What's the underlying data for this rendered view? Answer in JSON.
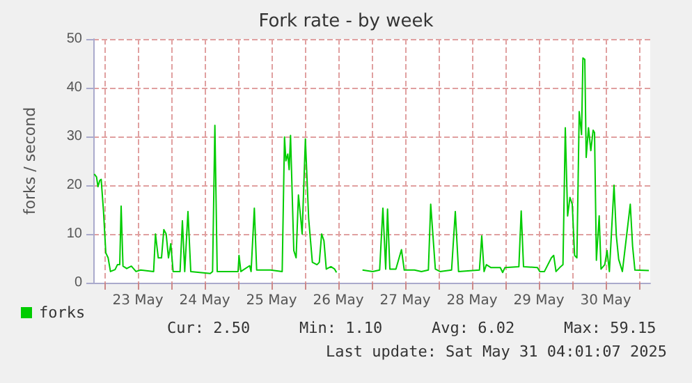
{
  "chart_data": {
    "type": "line",
    "title": "Fork rate - by week",
    "ylabel": "forks / second",
    "xlim": [
      "2025-05-22T20:00",
      "2025-05-31T04:00"
    ],
    "xticks": [
      {
        "value": "2025-05-23T00:00",
        "label": null
      },
      {
        "value": "2025-05-23T12:00",
        "label": "23 May"
      },
      {
        "value": "2025-05-24T00:00",
        "label": null
      },
      {
        "value": "2025-05-24T12:00",
        "label": "24 May"
      },
      {
        "value": "2025-05-25T00:00",
        "label": null
      },
      {
        "value": "2025-05-25T12:00",
        "label": "25 May"
      },
      {
        "value": "2025-05-26T00:00",
        "label": null
      },
      {
        "value": "2025-05-26T12:00",
        "label": "26 May"
      },
      {
        "value": "2025-05-27T00:00",
        "label": null
      },
      {
        "value": "2025-05-27T12:00",
        "label": "27 May"
      },
      {
        "value": "2025-05-28T00:00",
        "label": null
      },
      {
        "value": "2025-05-28T12:00",
        "label": "28 May"
      },
      {
        "value": "2025-05-29T00:00",
        "label": null
      },
      {
        "value": "2025-05-29T12:00",
        "label": "29 May"
      },
      {
        "value": "2025-05-30T00:00",
        "label": null
      },
      {
        "value": "2025-05-30T12:00",
        "label": "30 May"
      },
      {
        "value": "2025-05-31T00:00",
        "label": null
      }
    ],
    "ylim": [
      0,
      50
    ],
    "yticks": [
      0,
      10,
      20,
      30,
      40,
      50
    ],
    "grid": true,
    "legend": "bottom left",
    "marker": "none",
    "line_style": "solid",
    "x": [
      "2025-05-22T20:20",
      "2025-05-22T21:10",
      "2025-05-22T21:40",
      "2025-05-22T22:20",
      "2025-05-22T22:50",
      "2025-05-22T23:40",
      "2025-05-23T00:30",
      "2025-05-23T01:20",
      "2025-05-23T02:10",
      "2025-05-23T03:50",
      "2025-05-23T04:40",
      "2025-05-23T05:30",
      "2025-05-23T06:00",
      "2025-05-23T06:40",
      "2025-05-23T08:00",
      "2025-05-23T09:40",
      "2025-05-23T11:20",
      "2025-05-23T13:00",
      "2025-05-23T17:40",
      "2025-05-23T18:20",
      "2025-05-23T19:20",
      "2025-05-23T20:30",
      "2025-05-23T21:20",
      "2025-05-23T22:10",
      "2025-05-23T23:00",
      "2025-05-23T23:50",
      "2025-05-24T00:40",
      "2025-05-24T03:10",
      "2025-05-24T04:00",
      "2025-05-24T04:50",
      "2025-05-24T06:00",
      "2025-05-24T07:00",
      "2025-05-24T14:00",
      "2025-05-24T14:50",
      "2025-05-24T15:40",
      "2025-05-24T16:30",
      "2025-05-25T00:00",
      "2025-05-25T00:20",
      "2025-05-25T01:00",
      "2025-05-25T04:10",
      "2025-05-25T04:40",
      "2025-05-25T05:50",
      "2025-05-25T06:40",
      "2025-05-25T11:40",
      "2025-05-25T15:50",
      "2025-05-25T16:40",
      "2025-05-25T17:10",
      "2025-05-25T17:50",
      "2025-05-25T18:20",
      "2025-05-25T18:50",
      "2025-05-25T20:00",
      "2025-05-25T20:50",
      "2025-05-25T21:40",
      "2025-05-25T22:30",
      "2025-05-25T23:00",
      "2025-05-26T00:10",
      "2025-05-26T01:20",
      "2025-05-26T02:40",
      "2025-05-26T04:20",
      "2025-05-26T05:10",
      "2025-05-26T06:00",
      "2025-05-26T06:50",
      "2025-05-26T07:40",
      "2025-05-26T09:20",
      "2025-05-26T10:40",
      "2025-05-26T11:20",
      "2025-05-26T15:00",
      "2025-05-26T20:40",
      "2025-05-27T00:20",
      "2025-05-27T02:50",
      "2025-05-27T04:00",
      "2025-05-27T05:00",
      "2025-05-27T05:40",
      "2025-05-27T06:30",
      "2025-05-27T08:40",
      "2025-05-27T10:40",
      "2025-05-27T11:40",
      "2025-05-27T15:20",
      "2025-05-27T17:50",
      "2025-05-27T20:20",
      "2025-05-27T21:10",
      "2025-05-27T22:50",
      "2025-05-28T00:30",
      "2025-05-28T04:40",
      "2025-05-28T06:00",
      "2025-05-28T07:10",
      "2025-05-28T14:40",
      "2025-05-28T15:30",
      "2025-05-28T16:20",
      "2025-05-28T17:10",
      "2025-05-28T18:50",
      "2025-05-28T22:10",
      "2025-05-28T23:00",
      "2025-05-28T23:50",
      "2025-05-29T04:50",
      "2025-05-29T05:40",
      "2025-05-29T06:30",
      "2025-05-29T11:30",
      "2025-05-29T12:20",
      "2025-05-29T14:00",
      "2025-05-29T16:30",
      "2025-05-29T17:20",
      "2025-05-29T18:10",
      "2025-05-29T19:50",
      "2025-05-29T20:40",
      "2025-05-29T21:30",
      "2025-05-29T22:20",
      "2025-05-29T23:10",
      "2025-05-30T00:00",
      "2025-05-30T00:50",
      "2025-05-30T01:40",
      "2025-05-30T02:30",
      "2025-05-30T03:20",
      "2025-05-30T03:50",
      "2025-05-30T04:30",
      "2025-05-30T05:00",
      "2025-05-30T05:50",
      "2025-05-30T06:40",
      "2025-05-30T07:30",
      "2025-05-30T08:00",
      "2025-05-30T08:40",
      "2025-05-30T09:40",
      "2025-05-30T10:20",
      "2025-05-30T11:40",
      "2025-05-30T12:30",
      "2025-05-30T13:20",
      "2025-05-30T15:00",
      "2025-05-30T15:50",
      "2025-05-30T16:40",
      "2025-05-30T18:00",
      "2025-05-30T20:50",
      "2025-05-30T21:40",
      "2025-05-30T22:30",
      "2025-05-31T03:30"
    ],
    "series": [
      {
        "name": "forks",
        "color": "#00cc00",
        "values": [
          22.3,
          21.7,
          19.7,
          21,
          21.2,
          14.7,
          6.1,
          5.1,
          2.3,
          2.7,
          3.7,
          3.7,
          15.7,
          3.4,
          2.9,
          3.4,
          2.3,
          2.6,
          2.3,
          10,
          5.1,
          5.1,
          10.9,
          10,
          5.1,
          8,
          2.3,
          2.3,
          12.7,
          2.3,
          14.6,
          2.3,
          1.9,
          2.3,
          32.3,
          2.3,
          2.3,
          5.6,
          2.3,
          3.5,
          2.3,
          15.3,
          2.6,
          2.6,
          2.3,
          29.9,
          25,
          26.4,
          23.2,
          30.2,
          6.6,
          5.1,
          18,
          13.2,
          10,
          29.5,
          13.2,
          4.2,
          3.7,
          4.2,
          10,
          8.6,
          2.8,
          3.3,
          2.8,
          2.1,
          null,
          2.6,
          2.3,
          2.6,
          15.3,
          2.8,
          15.1,
          2.8,
          2.8,
          6.8,
          2.6,
          2.6,
          2.3,
          2.6,
          16.1,
          2.8,
          2.3,
          2.6,
          14.6,
          2.3,
          2.6,
          9.6,
          2.3,
          3.7,
          3.1,
          3.1,
          2.1,
          3.1,
          3.3,
          14.7,
          3.3,
          3.1,
          2.3,
          2.3,
          5.1,
          5.6,
          2.3,
          3.3,
          3.7,
          31.8,
          13.7,
          17.5,
          16.1,
          5.6,
          5.1,
          35.1,
          30.4,
          46.1,
          45.8,
          25.7,
          31.8,
          27.1,
          31.3,
          30.8,
          4.6,
          13.7,
          2.8,
          3.7,
          6.6,
          2.3,
          20,
          9.6,
          4.8,
          2.3,
          16.1,
          7.5,
          2.6,
          2.5
        ]
      }
    ],
    "annotations": [
      "Cur: 2.50",
      "Min: 1.10",
      "Avg: 6.02",
      "Max: 59.15",
      "Last update: Sat May 31 04:01:07 2025"
    ]
  }
}
